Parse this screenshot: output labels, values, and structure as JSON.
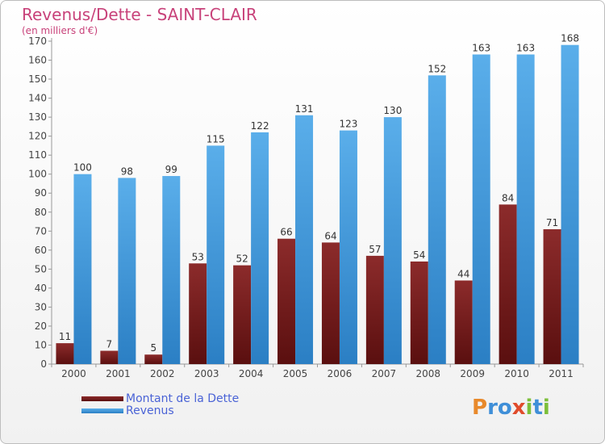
{
  "title": "Revenus/Dette - SAINT-CLAIR",
  "subtitle": "(en milliers d'€)",
  "logo_letters": [
    "P",
    "r",
    "o",
    "x",
    "i",
    "t",
    "i"
  ],
  "colors": {
    "dette": "#7a1f1f",
    "revenus": "#4da3e6",
    "title": "#c8427a",
    "legend_text": "#4a63d6"
  },
  "chart_data": {
    "type": "bar",
    "categories": [
      "2000",
      "2001",
      "2002",
      "2003",
      "2004",
      "2005",
      "2006",
      "2007",
      "2008",
      "2009",
      "2010",
      "2011"
    ],
    "series": [
      {
        "name": "Montant de la Dette",
        "values": [
          11,
          7,
          5,
          53,
          52,
          66,
          64,
          57,
          54,
          44,
          84,
          71
        ]
      },
      {
        "name": "Revenus",
        "values": [
          100,
          98,
          99,
          115,
          122,
          131,
          123,
          130,
          152,
          163,
          163,
          168
        ]
      }
    ],
    "yticks": [
      0,
      10,
      20,
      30,
      40,
      50,
      60,
      70,
      80,
      90,
      100,
      110,
      120,
      130,
      140,
      150,
      160,
      170
    ],
    "ylim": [
      0,
      170
    ],
    "grid": false,
    "legend_position": "bottom-left"
  }
}
